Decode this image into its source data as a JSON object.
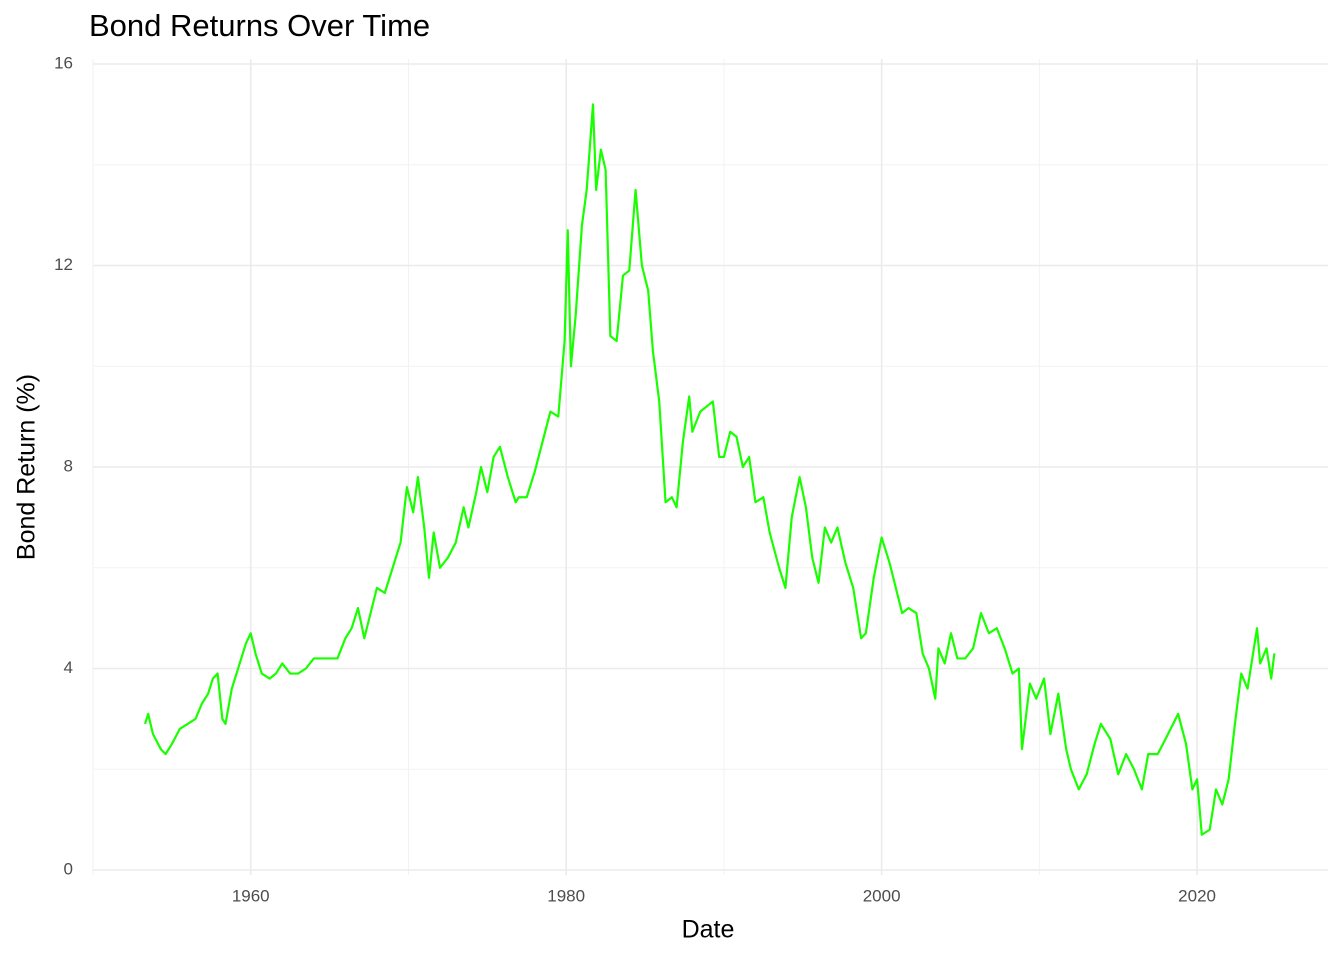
{
  "chart_data": {
    "type": "line",
    "title": "Bond Returns Over Time",
    "x_label": "Date",
    "y_label": "Bond Return (%)",
    "color": "#1aff00",
    "grid": true,
    "xlim": [
      1950,
      2028.3
    ],
    "ylim": [
      0,
      16
    ],
    "xticks": [
      1960,
      1980,
      2000,
      2020
    ],
    "yticks": [
      0,
      4,
      8,
      12,
      16
    ],
    "x": [
      1953.3,
      1953.5,
      1953.8,
      1954.3,
      1954.6,
      1955,
      1955.5,
      1956,
      1956.5,
      1956.9,
      1957.3,
      1957.6,
      1957.9,
      1958.2,
      1958.4,
      1958.8,
      1959.3,
      1959.7,
      1960,
      1960.3,
      1960.7,
      1961.2,
      1961.6,
      1962,
      1962.5,
      1963,
      1963.5,
      1964,
      1964.5,
      1965,
      1965.5,
      1966,
      1966.4,
      1966.8,
      1967.2,
      1967.6,
      1968,
      1968.5,
      1969,
      1969.5,
      1969.9,
      1970.3,
      1970.6,
      1971,
      1971.3,
      1971.6,
      1972,
      1972.5,
      1973,
      1973.5,
      1973.8,
      1974.3,
      1974.6,
      1975,
      1975.4,
      1975.8,
      1976.3,
      1976.8,
      1977,
      1977.5,
      1978,
      1978.5,
      1979,
      1979.5,
      1979.9,
      1980.1,
      1980.3,
      1980.6,
      1981,
      1981.3,
      1981.7,
      1981.9,
      1982.2,
      1982.5,
      1982.8,
      1983.2,
      1983.6,
      1984,
      1984.4,
      1984.8,
      1985.2,
      1985.5,
      1985.9,
      1986.3,
      1986.7,
      1987,
      1987.4,
      1987.8,
      1988,
      1988.5,
      1988.9,
      1989.3,
      1989.7,
      1990,
      1990.4,
      1990.8,
      1991.2,
      1991.6,
      1992,
      1992.5,
      1992.9,
      1993.5,
      1993.9,
      1994.3,
      1994.8,
      1995.2,
      1995.6,
      1996,
      1996.4,
      1996.8,
      1997.2,
      1997.7,
      1998.2,
      1998.7,
      1999,
      1999.5,
      2000,
      2000.5,
      2000.9,
      2001.3,
      2001.7,
      2002.2,
      2002.6,
      2003,
      2003.4,
      2003.6,
      2004,
      2004.4,
      2004.8,
      2005.3,
      2005.8,
      2006.3,
      2006.8,
      2007.3,
      2007.8,
      2008.3,
      2008.7,
      2008.9,
      2009.4,
      2009.8,
      2010.3,
      2010.7,
      2011.2,
      2011.7,
      2012,
      2012.5,
      2013,
      2013.5,
      2013.9,
      2014.5,
      2015,
      2015.5,
      2016,
      2016.5,
      2016.9,
      2017.5,
      2018,
      2018.8,
      2019.3,
      2019.7,
      2020,
      2020.3,
      2020.8,
      2021.2,
      2021.6,
      2022,
      2022.4,
      2022.8,
      2023.2,
      2023.8,
      2024,
      2024.4,
      2024.7,
      2024.9
    ],
    "values": [
      2.9,
      3.1,
      2.7,
      2.4,
      2.3,
      2.5,
      2.8,
      2.9,
      3.0,
      3.3,
      3.5,
      3.8,
      3.9,
      3.0,
      2.9,
      3.6,
      4.1,
      4.5,
      4.7,
      4.3,
      3.9,
      3.8,
      3.9,
      4.1,
      3.9,
      3.9,
      4.0,
      4.2,
      4.2,
      4.2,
      4.2,
      4.6,
      4.8,
      5.2,
      4.6,
      5.1,
      5.6,
      5.5,
      6.0,
      6.5,
      7.6,
      7.1,
      7.8,
      6.8,
      5.8,
      6.7,
      6.0,
      6.2,
      6.5,
      7.2,
      6.8,
      7.5,
      8.0,
      7.5,
      8.2,
      8.4,
      7.8,
      7.3,
      7.4,
      7.4,
      7.9,
      8.5,
      9.1,
      9.0,
      10.5,
      12.7,
      10.0,
      11.0,
      12.8,
      13.5,
      15.2,
      13.5,
      14.3,
      13.9,
      10.6,
      10.5,
      11.8,
      11.9,
      13.5,
      12.0,
      11.5,
      10.3,
      9.3,
      7.3,
      7.4,
      7.2,
      8.5,
      9.4,
      8.7,
      9.1,
      9.2,
      9.3,
      8.2,
      8.2,
      8.7,
      8.6,
      8.0,
      8.2,
      7.3,
      7.4,
      6.7,
      6.0,
      5.6,
      7.0,
      7.8,
      7.2,
      6.2,
      5.7,
      6.8,
      6.5,
      6.8,
      6.1,
      5.6,
      4.6,
      4.7,
      5.8,
      6.6,
      6.1,
      5.6,
      5.1,
      5.2,
      5.1,
      4.3,
      4.0,
      3.4,
      4.4,
      4.1,
      4.7,
      4.2,
      4.2,
      4.4,
      5.1,
      4.7,
      4.8,
      4.4,
      3.9,
      4.0,
      2.4,
      3.7,
      3.4,
      3.8,
      2.7,
      3.5,
      2.4,
      2.0,
      1.6,
      1.9,
      2.5,
      2.9,
      2.6,
      1.9,
      2.3,
      2.0,
      1.6,
      2.3,
      2.3,
      2.6,
      3.1,
      2.5,
      1.6,
      1.8,
      0.7,
      0.8,
      1.6,
      1.3,
      1.8,
      2.9,
      3.9,
      3.6,
      4.8,
      4.1,
      4.4,
      3.8,
      4.3
    ]
  }
}
